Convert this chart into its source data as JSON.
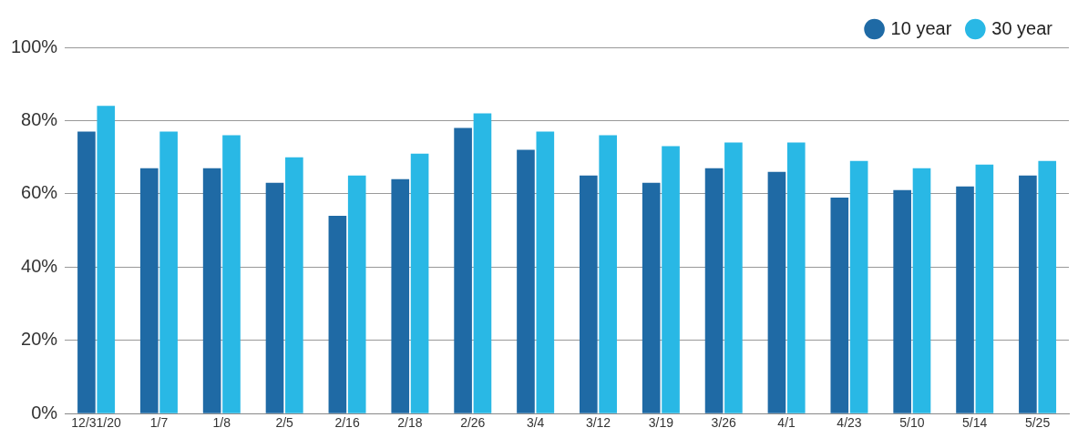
{
  "chart_data": {
    "type": "bar",
    "categories": [
      "12/31/20",
      "1/7",
      "1/8",
      "2/5",
      "2/16",
      "2/18",
      "2/26",
      "3/4",
      "3/12",
      "3/19",
      "3/26",
      "4/1",
      "4/23",
      "5/10",
      "5/14",
      "5/25"
    ],
    "series": [
      {
        "name": "10 year",
        "color": "#1f6aa5",
        "values": [
          77,
          67,
          67,
          63,
          54,
          64,
          78,
          72,
          65,
          63,
          67,
          66,
          59,
          61,
          62,
          65
        ]
      },
      {
        "name": "30 year",
        "color": "#29b8e5",
        "values": [
          84,
          77,
          76,
          70,
          65,
          71,
          82,
          77,
          76,
          73,
          74,
          74,
          69,
          67,
          68,
          69
        ]
      }
    ],
    "ylim": [
      0,
      100
    ],
    "yticks": [
      {
        "value": 0,
        "label": "0%"
      },
      {
        "value": 20,
        "label": "20%"
      },
      {
        "value": 40,
        "label": "40%"
      },
      {
        "value": 60,
        "label": "60%"
      },
      {
        "value": 80,
        "label": "80%"
      },
      {
        "value": 100,
        "label": "100%"
      }
    ],
    "grid": "y",
    "legend": "top right"
  }
}
